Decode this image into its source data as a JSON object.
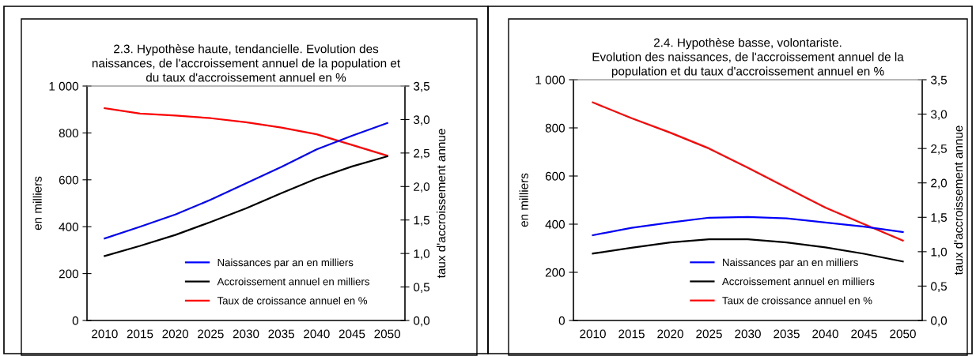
{
  "chart_data": [
    {
      "type": "line",
      "title": "2.3. Hypothèse haute, tendancielle. Evolution des\nnaissances, de l'accroissement annuel de la population et\ndu taux d'accroissement annuel en %",
      "ylabel": "en milliers",
      "y2label": "taux d'accroissement annue",
      "categories": [
        "2010",
        "2015",
        "2020",
        "2025",
        "2030",
        "2035",
        "2040",
        "2045",
        "2050"
      ],
      "series": [
        {
          "name": "Naissances par an en milliers",
          "color": "#0000ff",
          "values": [
            350,
            400,
            452,
            515,
            585,
            655,
            730,
            788,
            842
          ]
        },
        {
          "name": "Accroissement annuel en milliers",
          "color": "#000000",
          "values": [
            275,
            318,
            365,
            420,
            478,
            543,
            605,
            657,
            700
          ]
        },
        {
          "name": "Taux de croissance annuel en %",
          "color": "#ff0000",
          "axis": "y2",
          "values": [
            3.17,
            3.09,
            3.06,
            3.02,
            2.96,
            2.88,
            2.78,
            2.62,
            2.46
          ]
        }
      ],
      "ylim": [
        0,
        1000
      ],
      "yticks": [
        0,
        200,
        400,
        600,
        800,
        {
          "value": 1000,
          "label": "1 000"
        }
      ],
      "y2lim": [
        0,
        3.5
      ],
      "y2ticks": [
        {
          "value": 0,
          "label": "0,0"
        },
        {
          "value": 0.5,
          "label": "0,5"
        },
        {
          "value": 1,
          "label": "1,0"
        },
        {
          "value": 1.5,
          "label": "1,5"
        },
        {
          "value": 2,
          "label": "2,0"
        },
        {
          "value": 2.5,
          "label": "2,5"
        },
        {
          "value": 3,
          "label": "3,0"
        },
        {
          "value": 3.5,
          "label": "3,5"
        }
      ],
      "grid": false,
      "legend": "bottom",
      "marker": "none",
      "line_style": "solid"
    },
    {
      "type": "line",
      "title": "2.4. Hypothèse basse, volontariste.\nEvolution des naissances, de l'accroissement annuel de la\npopulation et du taux d'accroissement annuel en %",
      "ylabel": "en milliers",
      "y2label": "taux d'accroissement annue",
      "categories": [
        "2010",
        "2015",
        "2020",
        "2025",
        "2030",
        "2035",
        "2040",
        "2045",
        "2050"
      ],
      "series": [
        {
          "name": "Naissances par an en milliers",
          "color": "#0000ff",
          "values": [
            354,
            385,
            407,
            427,
            430,
            424,
            407,
            390,
            367
          ]
        },
        {
          "name": "Accroissement annuel en milliers",
          "color": "#000000",
          "values": [
            278,
            302,
            324,
            337,
            337,
            324,
            304,
            277,
            245
          ]
        },
        {
          "name": "Taux de croissance annuel en %",
          "color": "#ff0000",
          "axis": "y2",
          "values": [
            3.17,
            2.94,
            2.73,
            2.5,
            2.22,
            1.93,
            1.64,
            1.4,
            1.16
          ]
        }
      ],
      "ylim": [
        0,
        1000
      ],
      "yticks": [
        0,
        200,
        400,
        600,
        800,
        {
          "value": 1000,
          "label": "1 000"
        }
      ],
      "y2lim": [
        0,
        3.5
      ],
      "y2ticks": [
        {
          "value": 0,
          "label": "0,0"
        },
        {
          "value": 0.5,
          "label": "0,5"
        },
        {
          "value": 1,
          "label": "1,0"
        },
        {
          "value": 1.5,
          "label": "1,5"
        },
        {
          "value": 2,
          "label": "2,0"
        },
        {
          "value": 2.5,
          "label": "2,5"
        },
        {
          "value": 3,
          "label": "3,0"
        },
        {
          "value": 3.5,
          "label": "3,5"
        }
      ],
      "grid": false,
      "legend": "bottom",
      "marker": "none",
      "line_style": "solid"
    }
  ]
}
